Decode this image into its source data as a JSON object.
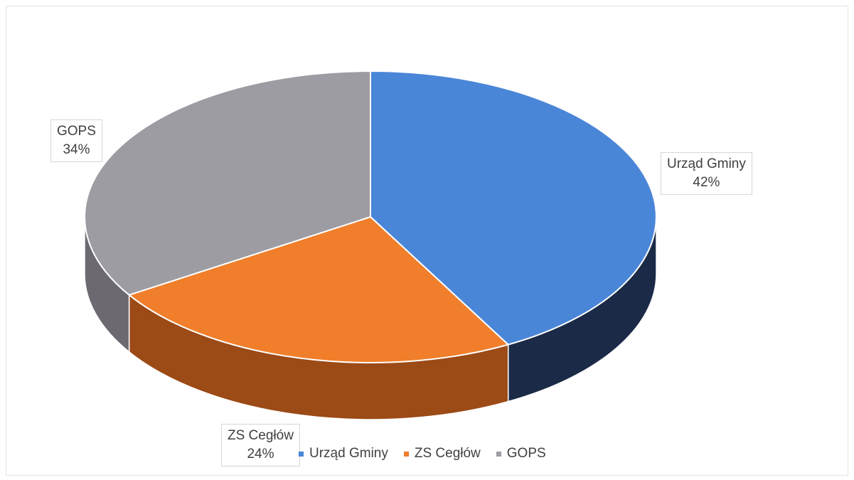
{
  "chart_data": {
    "type": "pie",
    "style": "3d",
    "title": "",
    "legend_position": "bottom",
    "slices": [
      {
        "label": "Urząd Gminy",
        "value": 42,
        "value_label": "42%",
        "color": "#4a86d8",
        "side_color": "#1b2a47"
      },
      {
        "label": "ZS Cegłów",
        "value": 24,
        "value_label": "24%",
        "color": "#f07e2a",
        "side_color": "#9c4a16"
      },
      {
        "label": "GOPS",
        "value": 34,
        "value_label": "34%",
        "color": "#9e9ca3",
        "side_color": "#6c6a70"
      }
    ]
  }
}
